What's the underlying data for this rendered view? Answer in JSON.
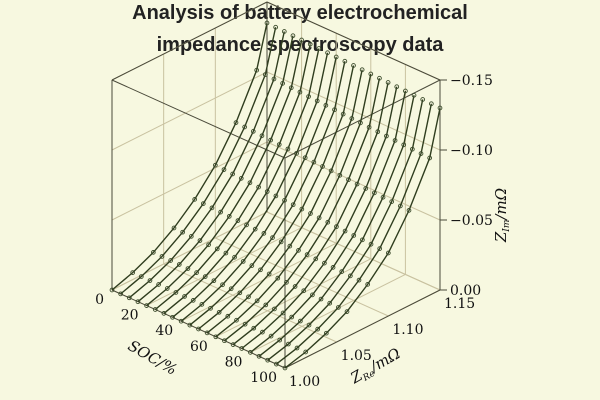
{
  "title_line1": "Analysis of battery electrochemical",
  "title_line2": "impedance spectroscopy data",
  "chart_data": {
    "type": "line-3d",
    "x_axis": {
      "label": "SOC/%",
      "ticks": [
        "0",
        "20",
        "40",
        "60",
        "80",
        "100"
      ],
      "range": [
        0,
        100
      ]
    },
    "y_axis": {
      "label": "Z_Re/mΩ",
      "label_main": "Z",
      "label_sub": "Re",
      "label_unit": "/mΩ",
      "ticks": [
        "1.00",
        "1.05",
        "1.10",
        "1.15"
      ],
      "range": [
        1.0,
        1.15
      ]
    },
    "z_axis": {
      "label": "Z_Im/mΩ",
      "label_main": "Z",
      "label_sub": "Im",
      "label_unit": "/mΩ",
      "ticks": [
        "0.00",
        "−0.05",
        "−0.10",
        "−0.15"
      ],
      "range": [
        0,
        -0.15
      ]
    },
    "grid": true,
    "soc_values": [
      0,
      5,
      10,
      15,
      20,
      25,
      30,
      35,
      40,
      45,
      50,
      55,
      60,
      65,
      70,
      75,
      80,
      85,
      90,
      95,
      100
    ],
    "spectrum_re": [
      1.0,
      1.02,
      1.04,
      1.06,
      1.08,
      1.1,
      1.12,
      1.14,
      1.15
    ],
    "spectrum_im_at_soc0": [
      0.0,
      -0.005,
      -0.012,
      -0.022,
      -0.035,
      -0.052,
      -0.075,
      -0.105,
      -0.135
    ],
    "spectrum_im_at_soc100": [
      0.0,
      -0.004,
      -0.01,
      -0.018,
      -0.03,
      -0.045,
      -0.068,
      -0.098,
      -0.13
    ],
    "line_color": "#2f3d1e",
    "marker_color": "#3a4a2a"
  }
}
